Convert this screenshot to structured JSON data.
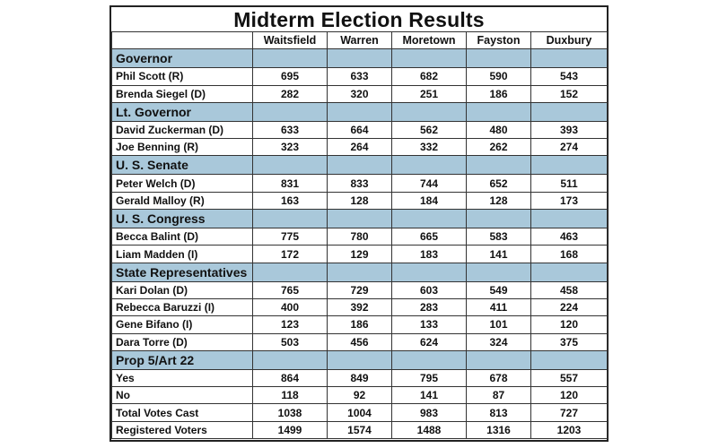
{
  "title": "Midterm Election Results",
  "columns": [
    "",
    "Waitsfield",
    "Warren",
    "Moretown",
    "Fayston",
    "Duxbury"
  ],
  "section_color": "#a9c8da",
  "sections": [
    {
      "name": "Governor",
      "rows": [
        {
          "label": "Phil Scott (R)",
          "values": [
            "695",
            "633",
            "682",
            "590",
            "543"
          ]
        },
        {
          "label": "Brenda Siegel (D)",
          "values": [
            "282",
            "320",
            "251",
            "186",
            "152"
          ]
        }
      ]
    },
    {
      "name": "Lt. Governor",
      "rows": [
        {
          "label": "David Zuckerman (D)",
          "values": [
            "633",
            "664",
            "562",
            "480",
            "393"
          ]
        },
        {
          "label": "Joe Benning (R)",
          "values": [
            "323",
            "264",
            "332",
            "262",
            "274"
          ]
        }
      ]
    },
    {
      "name": "U. S. Senate",
      "rows": [
        {
          "label": "Peter Welch (D)",
          "values": [
            "831",
            "833",
            "744",
            "652",
            "511"
          ]
        },
        {
          "label": "Gerald Malloy (R)",
          "values": [
            "163",
            "128",
            "184",
            "128",
            "173"
          ]
        }
      ]
    },
    {
      "name": "U. S. Congress",
      "rows": [
        {
          "label": "Becca Balint (D)",
          "values": [
            "775",
            "780",
            "665",
            "583",
            "463"
          ]
        },
        {
          "label": "Liam Madden (I)",
          "values": [
            "172",
            "129",
            "183",
            "141",
            "168"
          ]
        }
      ]
    },
    {
      "name": "State Representatives",
      "rows": [
        {
          "label": "Kari Dolan (D)",
          "values": [
            "765",
            "729",
            "603",
            "549",
            "458"
          ]
        },
        {
          "label": "Rebecca Baruzzi (I)",
          "values": [
            "400",
            "392",
            "283",
            "411",
            "224"
          ]
        },
        {
          "label": "Gene Bifano (I)",
          "values": [
            "123",
            "186",
            "133",
            "101",
            "120"
          ]
        },
        {
          "label": "Dara Torre (D)",
          "values": [
            "503",
            "456",
            "624",
            "324",
            "375"
          ]
        }
      ]
    },
    {
      "name": "Prop 5/Art 22",
      "rows": [
        {
          "label": "Yes",
          "values": [
            "864",
            "849",
            "795",
            "678",
            "557"
          ]
        },
        {
          "label": "No",
          "values": [
            "118",
            "92",
            "141",
            "87",
            "120"
          ]
        },
        {
          "label": "Total Votes Cast",
          "values": [
            "1038",
            "1004",
            "983",
            "813",
            "727"
          ]
        },
        {
          "label": "Registered Voters",
          "values": [
            "1499",
            "1574",
            "1488",
            "1316",
            "1203"
          ]
        }
      ]
    }
  ]
}
